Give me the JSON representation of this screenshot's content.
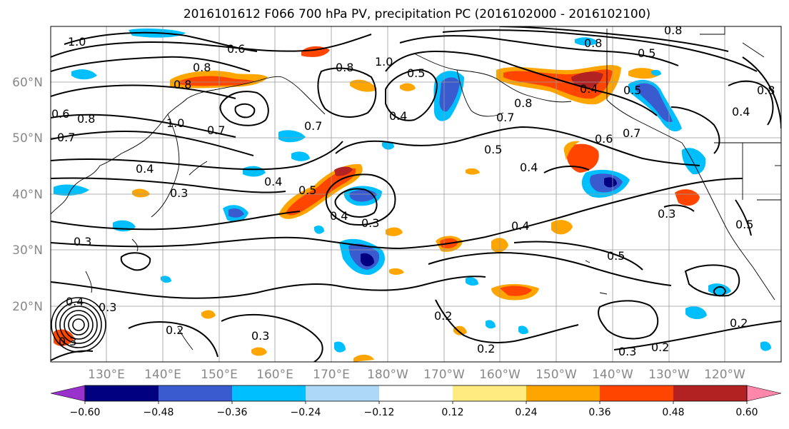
{
  "title": "2016101612 F066 700 hPa PV, precipitation PC (2016102000 - 2016102100)",
  "lat_labels": [
    "60°N",
    "50°N",
    "40°N",
    "30°N",
    "20°N"
  ],
  "lon_labels": [
    "130°E",
    "140°E",
    "150°E",
    "160°E",
    "170°E",
    "180°W",
    "170°W",
    "160°W",
    "150°W",
    "140°W",
    "130°W",
    "120°W"
  ],
  "colorbar": {
    "colors": [
      "#9932CC",
      "#000080",
      "#3A5BD0",
      "#00BFFF",
      "#ADD8F8",
      "#FFFFFF",
      "#FFEB80",
      "#FFA500",
      "#FF4500",
      "#B22222",
      "#FF88AA"
    ],
    "tick_labels": [
      "−0.60",
      "−0.48",
      "−0.36",
      "−0.24",
      "−0.12",
      "0.12",
      "0.24",
      "0.36",
      "0.48",
      "0.60"
    ]
  },
  "contour_labels": [
    "1.0",
    "0.6",
    "0.8",
    "0.8",
    "0.8",
    "1.0",
    "0.5",
    "0.8",
    "0.8",
    "0.5",
    "0.4",
    "0.8",
    "0.6",
    "0.5",
    "0.7",
    "1.0",
    "0.7",
    "0.4",
    "0.7",
    "0.7",
    "0.8",
    "0.6",
    "0.7",
    "0.4",
    "0.8",
    "0.4",
    "0.5",
    "0.4",
    "0.5",
    "0.3",
    "0.4",
    "0.3",
    "0.3",
    "0.4",
    "0.3",
    "0.5",
    "0.5",
    "0.4",
    "0.3",
    "0.2",
    "0.2",
    "0.3",
    "0.2",
    "0.3",
    "0.2",
    "0.3",
    "0.4",
    "0.2"
  ]
}
